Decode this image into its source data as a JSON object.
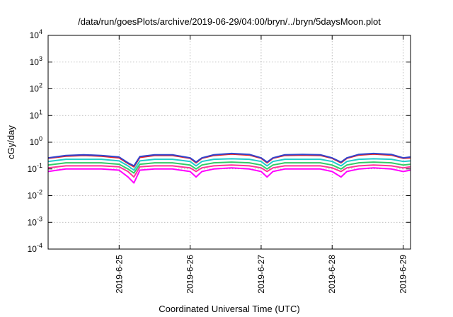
{
  "chart_data": {
    "type": "line",
    "title": "/data/run/goesPlots/archive/2019-06-29/04:00/bryn/../bryn/5daysMoon.plot",
    "xlabel": "Coordinated Universal Time (UTC)",
    "ylabel": "cGy/day",
    "yscale": "log",
    "ylim": [
      0.0001,
      10000
    ],
    "yticks": [
      {
        "base": "10",
        "exp": "-4",
        "value": 0.0001
      },
      {
        "base": "10",
        "exp": "-3",
        "value": 0.001
      },
      {
        "base": "10",
        "exp": "-2",
        "value": 0.01
      },
      {
        "base": "10",
        "exp": "-1",
        "value": 0.1
      },
      {
        "base": "10",
        "exp": "0",
        "value": 1
      },
      {
        "base": "10",
        "exp": "1",
        "value": 10
      },
      {
        "base": "10",
        "exp": "2",
        "value": 100
      },
      {
        "base": "10",
        "exp": "3",
        "value": 1000
      },
      {
        "base": "10",
        "exp": "4",
        "value": 10000
      }
    ],
    "xlim": [
      "2019-06-24T00:00",
      "2019-06-29T02:30"
    ],
    "xticks": [
      "2019-6-25",
      "2019-6-26",
      "2019-6-27",
      "2019-6-28",
      "2019-6-29"
    ],
    "grid": true,
    "series": [
      {
        "color": "#ff00ff",
        "x": [
          "2019-06-24T00:00",
          "2019-06-24T06:00",
          "2019-06-24T12:00",
          "2019-06-24T18:00",
          "2019-06-25T00:00",
          "2019-06-25T03:00",
          "2019-06-25T05:00",
          "2019-06-25T07:00",
          "2019-06-25T12:00",
          "2019-06-25T18:00",
          "2019-06-26T00:00",
          "2019-06-26T02:00",
          "2019-06-26T04:00",
          "2019-06-26T08:00",
          "2019-06-26T14:00",
          "2019-06-26T20:00",
          "2019-06-27T00:00",
          "2019-06-27T02:00",
          "2019-06-27T04:00",
          "2019-06-27T08:00",
          "2019-06-27T14:00",
          "2019-06-27T20:00",
          "2019-06-28T00:00",
          "2019-06-28T03:00",
          "2019-06-28T05:00",
          "2019-06-28T09:00",
          "2019-06-28T14:00",
          "2019-06-28T20:00",
          "2019-06-29T00:00",
          "2019-06-29T02:30"
        ],
        "y": [
          0.08,
          0.1,
          0.1,
          0.1,
          0.09,
          0.05,
          0.03,
          0.09,
          0.1,
          0.1,
          0.08,
          0.05,
          0.08,
          0.1,
          0.11,
          0.1,
          0.08,
          0.05,
          0.08,
          0.1,
          0.1,
          0.1,
          0.08,
          0.05,
          0.08,
          0.1,
          0.11,
          0.1,
          0.08,
          0.09
        ]
      },
      {
        "color": "#ff3399",
        "x": [
          "2019-06-24T00:00",
          "2019-06-24T06:00",
          "2019-06-24T12:00",
          "2019-06-24T18:00",
          "2019-06-25T00:00",
          "2019-06-25T03:00",
          "2019-06-25T05:00",
          "2019-06-25T07:00",
          "2019-06-25T12:00",
          "2019-06-25T18:00",
          "2019-06-26T00:00",
          "2019-06-26T02:00",
          "2019-06-26T04:00",
          "2019-06-26T08:00",
          "2019-06-26T14:00",
          "2019-06-26T20:00",
          "2019-06-27T00:00",
          "2019-06-27T02:00",
          "2019-06-27T04:00",
          "2019-06-27T08:00",
          "2019-06-27T14:00",
          "2019-06-27T20:00",
          "2019-06-28T00:00",
          "2019-06-28T03:00",
          "2019-06-28T05:00",
          "2019-06-28T09:00",
          "2019-06-28T14:00",
          "2019-06-28T20:00",
          "2019-06-29T00:00",
          "2019-06-29T02:30"
        ],
        "y": [
          0.11,
          0.13,
          0.13,
          0.13,
          0.12,
          0.08,
          0.05,
          0.12,
          0.13,
          0.13,
          0.11,
          0.08,
          0.11,
          0.13,
          0.14,
          0.13,
          0.11,
          0.08,
          0.11,
          0.13,
          0.13,
          0.13,
          0.11,
          0.08,
          0.11,
          0.13,
          0.14,
          0.13,
          0.11,
          0.12
        ]
      },
      {
        "color": "#33cc66",
        "x": [
          "2019-06-24T00:00",
          "2019-06-24T06:00",
          "2019-06-24T12:00",
          "2019-06-24T18:00",
          "2019-06-25T00:00",
          "2019-06-25T03:00",
          "2019-06-25T05:00",
          "2019-06-25T07:00",
          "2019-06-25T12:00",
          "2019-06-25T18:00",
          "2019-06-26T00:00",
          "2019-06-26T02:00",
          "2019-06-26T04:00",
          "2019-06-26T08:00",
          "2019-06-26T14:00",
          "2019-06-26T20:00",
          "2019-06-27T00:00",
          "2019-06-27T02:00",
          "2019-06-27T04:00",
          "2019-06-27T08:00",
          "2019-06-27T14:00",
          "2019-06-27T20:00",
          "2019-06-28T00:00",
          "2019-06-28T03:00",
          "2019-06-28T05:00",
          "2019-06-28T09:00",
          "2019-06-28T14:00",
          "2019-06-28T20:00",
          "2019-06-29T00:00",
          "2019-06-29T02:30"
        ],
        "y": [
          0.14,
          0.17,
          0.17,
          0.17,
          0.15,
          0.1,
          0.07,
          0.15,
          0.17,
          0.17,
          0.14,
          0.1,
          0.14,
          0.17,
          0.18,
          0.17,
          0.14,
          0.1,
          0.14,
          0.17,
          0.17,
          0.17,
          0.14,
          0.1,
          0.14,
          0.17,
          0.18,
          0.17,
          0.14,
          0.15
        ]
      },
      {
        "color": "#22cccc",
        "x": [
          "2019-06-24T00:00",
          "2019-06-24T06:00",
          "2019-06-24T12:00",
          "2019-06-24T18:00",
          "2019-06-25T00:00",
          "2019-06-25T03:00",
          "2019-06-25T05:00",
          "2019-06-25T07:00",
          "2019-06-25T12:00",
          "2019-06-25T18:00",
          "2019-06-26T00:00",
          "2019-06-26T02:00",
          "2019-06-26T04:00",
          "2019-06-26T08:00",
          "2019-06-26T14:00",
          "2019-06-26T20:00",
          "2019-06-27T00:00",
          "2019-06-27T02:00",
          "2019-06-27T04:00",
          "2019-06-27T08:00",
          "2019-06-27T14:00",
          "2019-06-27T20:00",
          "2019-06-28T00:00",
          "2019-06-28T03:00",
          "2019-06-28T05:00",
          "2019-06-28T09:00",
          "2019-06-28T14:00",
          "2019-06-28T20:00",
          "2019-06-29T00:00",
          "2019-06-29T02:30"
        ],
        "y": [
          0.19,
          0.23,
          0.23,
          0.23,
          0.2,
          0.13,
          0.09,
          0.2,
          0.23,
          0.23,
          0.19,
          0.13,
          0.19,
          0.23,
          0.24,
          0.23,
          0.19,
          0.13,
          0.19,
          0.23,
          0.23,
          0.23,
          0.19,
          0.13,
          0.19,
          0.23,
          0.24,
          0.23,
          0.19,
          0.2
        ]
      },
      {
        "color": "#ee2222",
        "x": [
          "2019-06-24T00:00",
          "2019-06-24T06:00",
          "2019-06-24T12:00",
          "2019-06-24T18:00",
          "2019-06-25T00:00",
          "2019-06-25T03:00",
          "2019-06-25T05:00",
          "2019-06-25T07:00",
          "2019-06-25T12:00",
          "2019-06-25T18:00",
          "2019-06-26T00:00",
          "2019-06-26T02:00",
          "2019-06-26T04:00",
          "2019-06-26T08:00",
          "2019-06-26T14:00",
          "2019-06-26T20:00",
          "2019-06-27T00:00",
          "2019-06-27T02:00",
          "2019-06-27T04:00",
          "2019-06-27T08:00",
          "2019-06-27T14:00",
          "2019-06-27T20:00",
          "2019-06-28T00:00",
          "2019-06-28T03:00",
          "2019-06-28T05:00",
          "2019-06-28T09:00",
          "2019-06-28T14:00",
          "2019-06-28T20:00",
          "2019-06-29T00:00",
          "2019-06-29T02:30"
        ],
        "y": [
          0.25,
          0.3,
          0.32,
          0.3,
          0.26,
          0.16,
          0.12,
          0.27,
          0.32,
          0.32,
          0.25,
          0.17,
          0.25,
          0.32,
          0.36,
          0.33,
          0.25,
          0.17,
          0.25,
          0.32,
          0.33,
          0.32,
          0.25,
          0.17,
          0.25,
          0.33,
          0.36,
          0.33,
          0.25,
          0.26
        ]
      },
      {
        "color": "#3344cc",
        "x": [
          "2019-06-24T00:00",
          "2019-06-24T06:00",
          "2019-06-24T12:00",
          "2019-06-24T18:00",
          "2019-06-25T00:00",
          "2019-06-25T03:00",
          "2019-06-25T05:00",
          "2019-06-25T07:00",
          "2019-06-25T12:00",
          "2019-06-25T18:00",
          "2019-06-26T00:00",
          "2019-06-26T02:00",
          "2019-06-26T04:00",
          "2019-06-26T08:00",
          "2019-06-26T14:00",
          "2019-06-26T20:00",
          "2019-06-27T00:00",
          "2019-06-27T02:00",
          "2019-06-27T04:00",
          "2019-06-27T08:00",
          "2019-06-27T14:00",
          "2019-06-27T20:00",
          "2019-06-28T00:00",
          "2019-06-28T03:00",
          "2019-06-28T05:00",
          "2019-06-28T09:00",
          "2019-06-28T14:00",
          "2019-06-28T20:00",
          "2019-06-29T00:00",
          "2019-06-29T02:30"
        ],
        "y": [
          0.26,
          0.32,
          0.34,
          0.32,
          0.28,
          0.17,
          0.13,
          0.29,
          0.34,
          0.34,
          0.26,
          0.18,
          0.26,
          0.34,
          0.38,
          0.35,
          0.26,
          0.18,
          0.26,
          0.34,
          0.35,
          0.34,
          0.26,
          0.18,
          0.26,
          0.35,
          0.38,
          0.35,
          0.26,
          0.28
        ]
      }
    ]
  }
}
